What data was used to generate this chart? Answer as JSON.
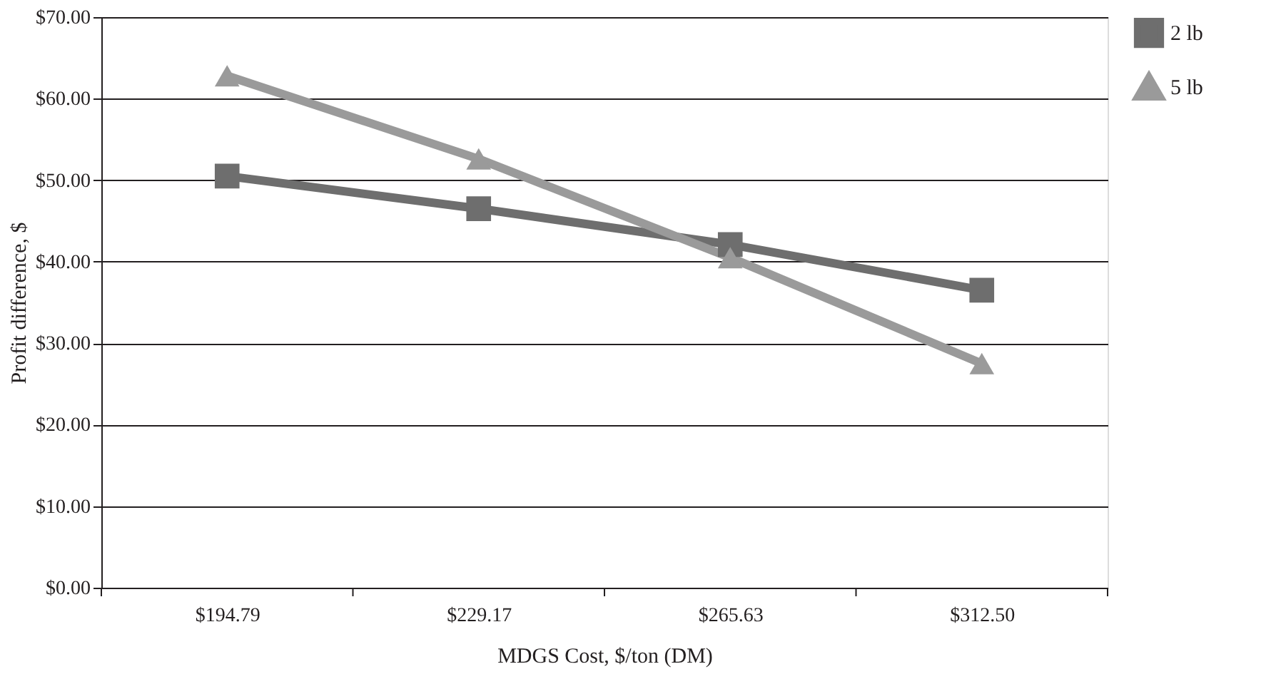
{
  "chart_data": {
    "type": "line",
    "xlabel": "MDGS Cost, $/ton (DM)",
    "ylabel": "Profit difference, $",
    "categories": [
      "$194.79",
      "$229.17",
      "$265.63",
      "$312.50"
    ],
    "series": [
      {
        "name": "2 lb",
        "color": "#6e6e6e",
        "marker": "square",
        "values": [
          50.5,
          46.5,
          42.1,
          36.5
        ]
      },
      {
        "name": "5 lb",
        "color": "#9a9a9a",
        "marker": "triangle",
        "values": [
          62.8,
          52.6,
          40.5,
          27.5
        ]
      }
    ],
    "ylim": [
      0,
      70
    ],
    "yticks": [
      {
        "value": 0,
        "label": "$0.00"
      },
      {
        "value": 10,
        "label": "$10.00"
      },
      {
        "value": 20,
        "label": "$20.00"
      },
      {
        "value": 30,
        "label": "$30.00"
      },
      {
        "value": 40,
        "label": "$40.00"
      },
      {
        "value": 50,
        "label": "$50.00"
      },
      {
        "value": 60,
        "label": "$60.00"
      },
      {
        "value": 70,
        "label": "$70.00"
      }
    ],
    "grid": "y",
    "legend": "right",
    "line_style": "solid"
  }
}
